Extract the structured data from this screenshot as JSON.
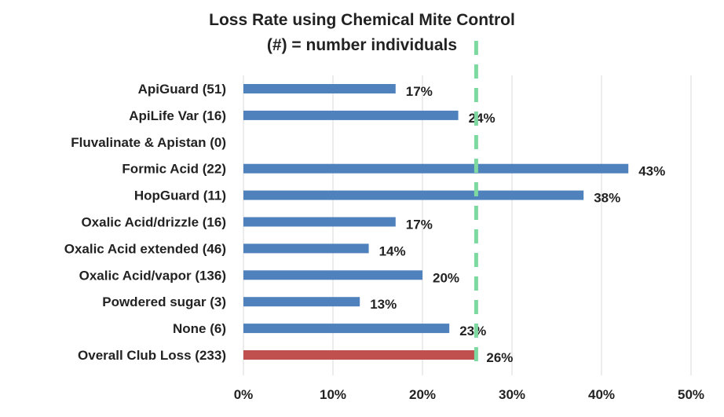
{
  "chart_data": {
    "type": "bar",
    "orientation": "horizontal",
    "title": "Loss Rate using Chemical Mite Control",
    "subtitle": "(#) = number individuals",
    "categories": [
      "ApiGuard (51)",
      "ApiLife Var (16)",
      "Fluvalinate & Apistan (0)",
      "Formic Acid  (22)",
      "HopGuard (11)",
      "Oxalic Acid/drizzle (16)",
      "Oxalic Acid extended (46)",
      "Oxalic Acid/vapor (136)",
      "Powdered sugar (3)",
      "None (6)",
      "Overall Club Loss (233)"
    ],
    "values": [
      17,
      24,
      null,
      43,
      38,
      17,
      14,
      20,
      13,
      23,
      26
    ],
    "data_labels": [
      "17%",
      "24%",
      "",
      "43%",
      "38%",
      "17%",
      "14%",
      "20%",
      "13%",
      "23%",
      "26%"
    ],
    "xlim": [
      0,
      50
    ],
    "xticks": [
      0,
      10,
      20,
      30,
      40,
      50
    ],
    "xtick_labels": [
      "0%",
      "10%",
      "20%",
      "30%",
      "40%",
      "50%"
    ],
    "grid": "vertical",
    "reference_line": {
      "value": 26,
      "style": "dashed",
      "color": "#7dd9a0"
    },
    "colors": {
      "bar": "#4f81bd",
      "highlight_bar": "#c0504d",
      "grid": "#d9d9d9"
    },
    "highlight_index": 10
  }
}
